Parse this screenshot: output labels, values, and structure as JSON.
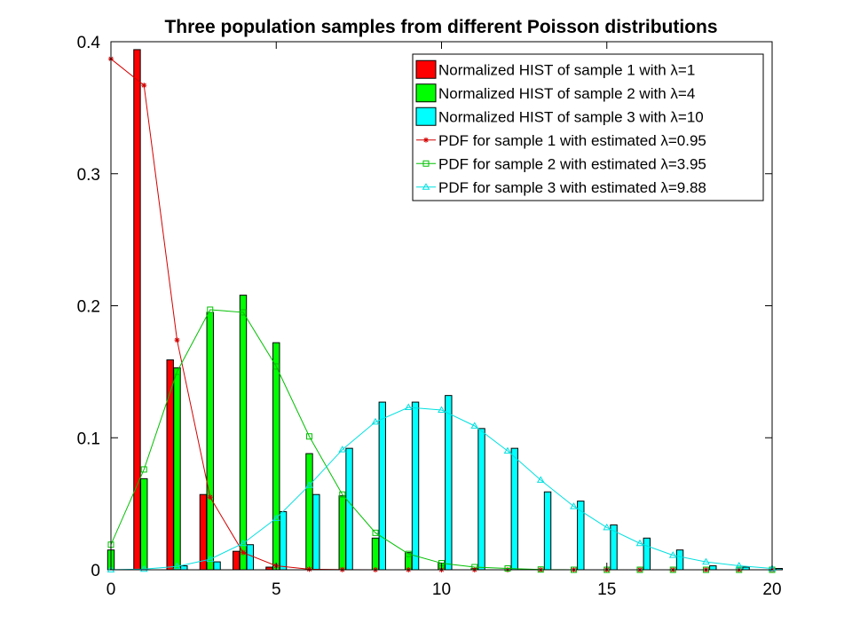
{
  "chart_data": {
    "type": "bar",
    "title": "Three population samples from different Poisson distributions",
    "xlabel": "",
    "ylabel": "",
    "xlim": [
      0,
      20
    ],
    "ylim": [
      0,
      0.4
    ],
    "xticks": [
      "0",
      "5",
      "10",
      "15",
      "20"
    ],
    "yticks": [
      "0",
      "0.1",
      "0.2",
      "0.3",
      "0.4"
    ],
    "x": [
      0,
      1,
      2,
      3,
      4,
      5,
      6,
      7,
      8,
      9,
      10,
      11,
      12,
      13,
      14,
      15,
      16,
      17,
      18,
      19,
      20
    ],
    "grid": false,
    "legend_position": "top-right",
    "bar_series": [
      {
        "name": "Normalized HIST of sample 1 with λ=1",
        "color": "#ff0000",
        "values": [
          0,
          0.394,
          0.159,
          0.057,
          0.014,
          0.002,
          0,
          0,
          0,
          0,
          0,
          0,
          0,
          0,
          0,
          0,
          0,
          0,
          0,
          0,
          0
        ]
      },
      {
        "name": "Normalized HIST of sample 2 with λ=4",
        "color": "#00ff00",
        "values": [
          0.015,
          0.069,
          0.153,
          0.195,
          0.208,
          0.172,
          0.088,
          0.056,
          0.024,
          0.013,
          0.005,
          0.001,
          0,
          0,
          0,
          0,
          0,
          0,
          0,
          0,
          0
        ]
      },
      {
        "name": "Normalized HIST of sample 3 with λ=10",
        "color": "#00ffff",
        "values": [
          0,
          0,
          0.003,
          0.006,
          0.019,
          0.044,
          0.057,
          0.092,
          0.127,
          0.127,
          0.132,
          0.107,
          0.092,
          0.059,
          0.052,
          0.034,
          0.024,
          0.015,
          0.003,
          0.002,
          0.001
        ]
      }
    ],
    "line_series": [
      {
        "name": "PDF for sample 1 with estimated λ=0.95",
        "color": "#d40000",
        "marker": "star",
        "values": [
          0.387,
          0.367,
          0.174,
          0.055,
          0.013,
          0.003,
          0.0004,
          0.0001,
          0,
          0,
          0,
          0,
          0,
          0,
          0,
          0,
          0,
          0,
          0,
          0,
          0
        ]
      },
      {
        "name": "PDF for sample 2 with estimated λ=3.95",
        "color": "#00c000",
        "marker": "square",
        "values": [
          0.019,
          0.076,
          0.15,
          0.197,
          0.195,
          0.154,
          0.101,
          0.057,
          0.028,
          0.012,
          0.005,
          0.002,
          0.001,
          0.0002,
          0,
          0,
          0,
          0,
          0,
          0,
          0
        ]
      },
      {
        "name": "PDF for sample 3 with estimated λ=9.88",
        "color": "#00e0e0",
        "marker": "triangle",
        "values": [
          0.0001,
          0.0005,
          0.0025,
          0.008,
          0.02,
          0.039,
          0.064,
          0.091,
          0.112,
          0.123,
          0.121,
          0.109,
          0.09,
          0.068,
          0.048,
          0.032,
          0.02,
          0.011,
          0.006,
          0.003,
          0.001
        ]
      }
    ]
  }
}
